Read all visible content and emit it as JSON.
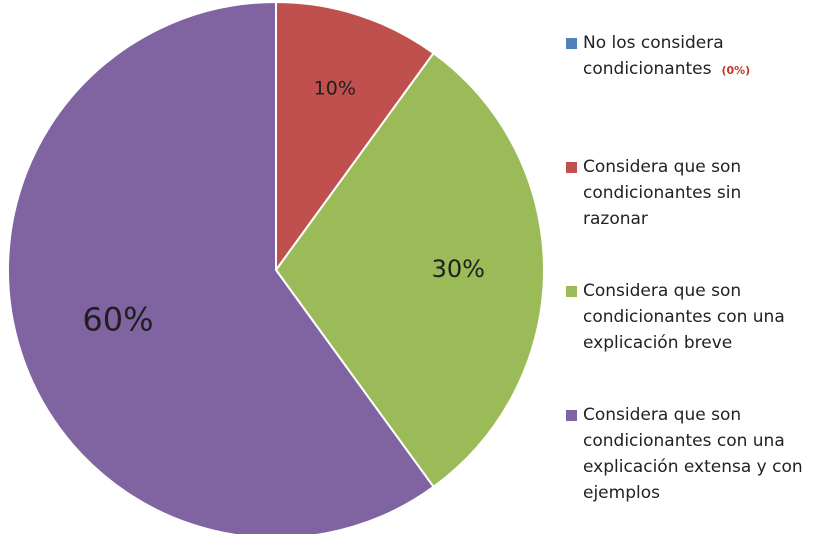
{
  "chart_data": {
    "type": "pie",
    "title": "",
    "slices": [
      {
        "name": "No los considera condicionantes",
        "value": 0,
        "label": "",
        "legend_lines": "No los considera\ncondicionantes",
        "legend_note": "(0%)",
        "color": "#4F81BD"
      },
      {
        "name": "Considera que son condicionantes sin razonar",
        "value": 10,
        "label": "10%",
        "legend_lines": "Considera que son\ncondicionantes sin\nrazonar",
        "legend_note": "",
        "color": "#C0504D"
      },
      {
        "name": "Considera que son condicionantes con una explicación breve",
        "value": 30,
        "label": "30%",
        "legend_lines": "Considera que son\ncondicionantes con una\nexplicación breve",
        "legend_note": "",
        "color": "#9BBB59"
      },
      {
        "name": "Considera que son condicionantes con una explicación extensa y con ejemplos",
        "value": 60,
        "label": "60%",
        "legend_lines": "Considera que son\ncondicionantes con una\nexplicación  extensa y con\nejemplos",
        "legend_note": "",
        "color": "#8064A2"
      }
    ],
    "start_angle_deg": 0,
    "direction": "clockwise",
    "legend_position": "right"
  }
}
